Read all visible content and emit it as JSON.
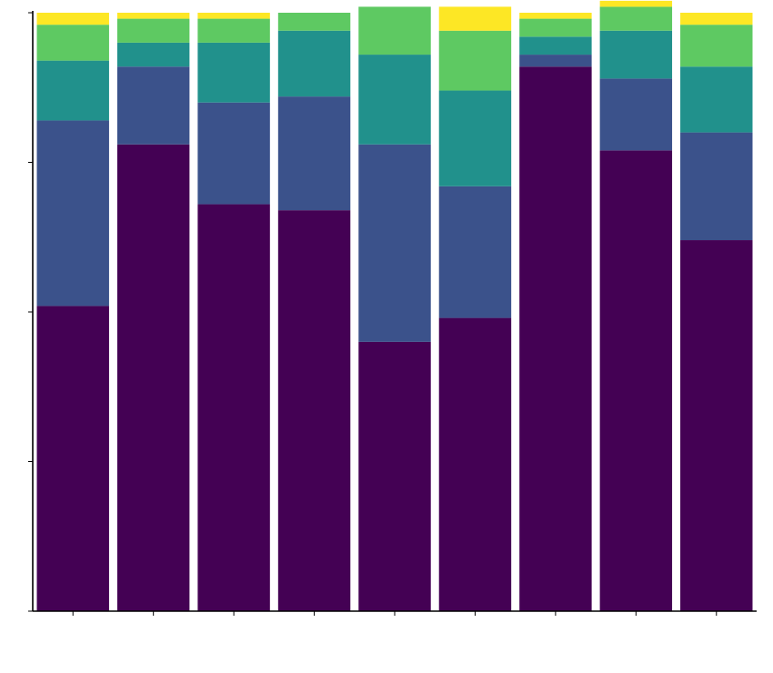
{
  "chart_data": {
    "type": "bar",
    "stacked": true,
    "normalized": true,
    "grid": false,
    "legend": "none",
    "ylim": [
      0,
      1
    ],
    "categories": [
      "",
      "",
      "",
      "",
      "",
      "",
      "",
      "",
      ""
    ],
    "series": [
      {
        "color": "#440154",
        "values": [
          0.51,
          0.78,
          0.68,
          0.67,
          0.45,
          0.49,
          0.91,
          0.77,
          0.62
        ]
      },
      {
        "color": "#3b528b",
        "values": [
          0.31,
          0.13,
          0.17,
          0.19,
          0.33,
          0.22,
          0.02,
          0.12,
          0.18
        ]
      },
      {
        "color": "#21918c",
        "values": [
          0.1,
          0.04,
          0.1,
          0.11,
          0.15,
          0.16,
          0.03,
          0.08,
          0.11
        ]
      },
      {
        "color": "#5ec962",
        "values": [
          0.06,
          0.04,
          0.04,
          0.03,
          0.08,
          0.1,
          0.03,
          0.04,
          0.07
        ]
      },
      {
        "color": "#fde725",
        "values": [
          0.02,
          0.01,
          0.01,
          0.0,
          0.0,
          0.04,
          0.01,
          0.01,
          0.02
        ]
      }
    ]
  }
}
